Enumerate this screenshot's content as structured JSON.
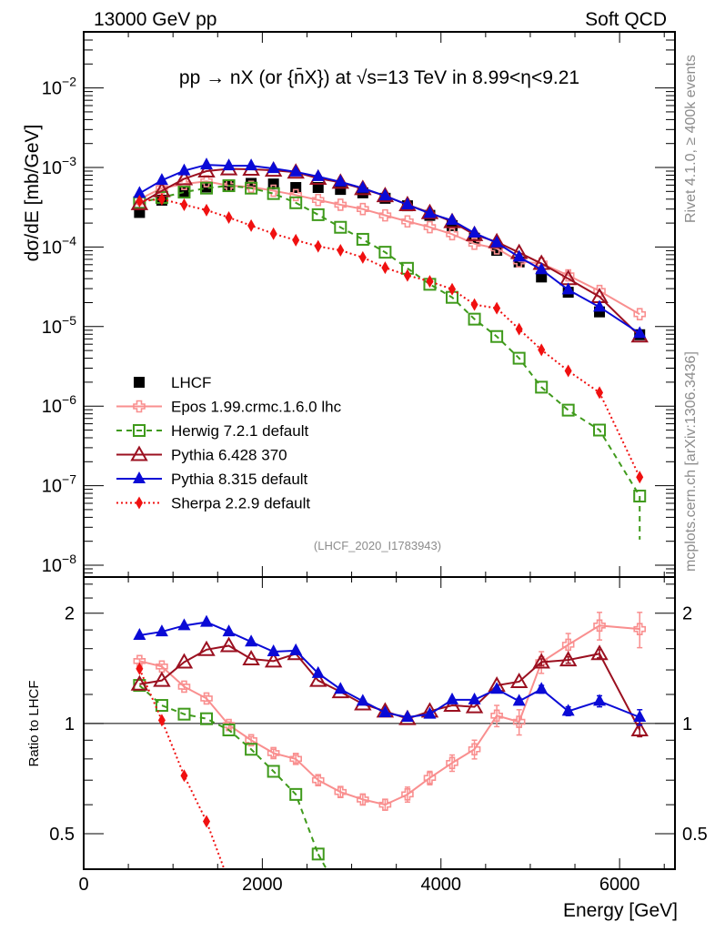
{
  "header": {
    "left": "13000 GeV pp",
    "right": "Soft QCD",
    "plot_title": "pp →  nX (or {n̄X}) at √s=13 TeV in 8.99<η<9.21",
    "side_top": "Rivet 4.1.0, ≥ 400k events",
    "side_bottom": "mcplots.cern.ch [arXiv:1306.3436]",
    "analysis_id": "(LHCF_2020_I1783943)"
  },
  "chart_data": [
    {
      "type": "line",
      "panel": "main",
      "title": "pp → nX (or n̄X) at √s=13 TeV in 8.99<η<9.21",
      "xlabel": "",
      "ylabel": "dσ/dE [mb/GeV]",
      "yscale": "log",
      "xlim": [
        0,
        6620
      ],
      "ylim": [
        7.1e-09,
        0.0507
      ],
      "y_ticks": [
        {
          "v": 1e-08,
          "label": "10",
          "exp": "−8"
        },
        {
          "v": 1e-07,
          "label": "10",
          "exp": "−7"
        },
        {
          "v": 1e-06,
          "label": "10",
          "exp": "−6"
        },
        {
          "v": 1e-05,
          "label": "10",
          "exp": "−5"
        },
        {
          "v": 0.0001,
          "label": "10",
          "exp": "−4"
        },
        {
          "v": 0.001,
          "label": "10",
          "exp": "−3"
        },
        {
          "v": 0.01,
          "label": "10",
          "exp": "−2"
        }
      ],
      "legend_position": "lower-left",
      "x": [
        625,
        875,
        1125,
        1375,
        1625,
        1875,
        2125,
        2375,
        2625,
        2875,
        3125,
        3375,
        3625,
        3875,
        4125,
        4375,
        4625,
        4875,
        5125,
        5425,
        5775,
        6225
      ],
      "series": [
        {
          "name": "LHCF",
          "color": "#000000",
          "marker": "square-filled",
          "line": "none",
          "values": [
            0.000272,
            0.000388,
            0.000492,
            0.000569,
            0.000592,
            0.000631,
            0.00062,
            0.00056,
            0.00056,
            0.00053,
            0.00048,
            0.00041,
            0.00033,
            0.00025,
            0.000186,
            0.000129,
            9.1e-05,
            6.5e-05,
            4.2e-05,
            2.7e-05,
            1.53e-05,
            7.9e-06
          ]
        },
        {
          "name": "Epos 1.99.crmc.1.6.0 lhc",
          "color": "#f98f8f",
          "marker": "cross-open",
          "line": "solid",
          "values": [
            0.0004,
            0.00055,
            0.00062,
            0.00067,
            0.00059,
            0.00057,
            0.00051,
            0.00045,
            0.00039,
            0.00034,
            0.0003,
            0.00025,
            0.00021,
            0.000178,
            0.000145,
            0.00011,
            9.6e-05,
            6.6e-05,
            6.2e-05,
            4.4e-05,
            2.8e-05,
            1.43e-05
          ]
        },
        {
          "name": "Herwig 7.2.1 default",
          "color": "#3f9a1b",
          "marker": "square-open",
          "line": "dashed",
          "values": [
            0.00036,
            0.00042,
            0.00049,
            0.00055,
            0.00059,
            0.00055,
            0.00047,
            0.00036,
            0.000255,
            0.000177,
            0.000125,
            8.6e-05,
            5.4e-05,
            3.4e-05,
            2.33e-05,
            1.24e-05,
            7.5e-06,
            4e-06,
            1.73e-06,
            8.9e-07,
            5e-07,
            7.4e-08
          ],
          "err_low_last": 2.1e-08
        },
        {
          "name": "Pythia 6.428 370",
          "color": "#9b1020",
          "marker": "triangle-open",
          "line": "solid",
          "values": [
            0.00035,
            0.00051,
            0.00072,
            0.0009,
            0.00096,
            0.00095,
            0.00092,
            0.00087,
            0.00073,
            0.00065,
            0.00054,
            0.00044,
            0.00034,
            0.00027,
            0.000208,
            0.000143,
            0.000116,
            8.5e-05,
            6.2e-05,
            4e-05,
            2.37e-05,
            7.6e-06
          ]
        },
        {
          "name": "Pythia 8.315 default",
          "color": "#0a0ad6",
          "marker": "triangle-filled",
          "line": "solid",
          "values": [
            0.000473,
            0.00069,
            0.00091,
            0.00108,
            0.00105,
            0.00105,
            0.00097,
            0.00088,
            0.00077,
            0.00066,
            0.00055,
            0.00044,
            0.00034,
            0.000265,
            0.000216,
            0.00015,
            0.000113,
            7.5e-05,
            5.2e-05,
            2.9e-05,
            1.76e-05,
            8.2e-06
          ]
        },
        {
          "name": "Sherpa 2.2.9 default",
          "color": "#f01010",
          "marker": "diamond-filled",
          "line": "dotted",
          "values": [
            0.000378,
            0.000399,
            0.00034,
            0.000291,
            0.000235,
            0.000186,
            0.000147,
            0.000122,
            0.000102,
            9.1e-05,
            7.4e-05,
            5.5e-05,
            4.4e-05,
            3.7e-05,
            2.95e-05,
            1.89e-05,
            1.7e-05,
            9.3e-06,
            5.1e-06,
            2.77e-06,
            1.48e-06,
            1.28e-07
          ]
        }
      ]
    },
    {
      "type": "line",
      "panel": "ratio",
      "xlabel": "Energy [GeV]",
      "ylabel": "Ratio to LHCF",
      "yscale": "log",
      "xlim": [
        0,
        6620
      ],
      "ylim": [
        0.4,
        2.51
      ],
      "x_ticks": [
        0,
        2000,
        4000,
        6000
      ],
      "y_ticks": [
        0.5,
        1,
        2
      ],
      "reference_line": 1,
      "x": [
        625,
        875,
        1125,
        1375,
        1625,
        1875,
        2125,
        2375,
        2625,
        2875,
        3125,
        3375,
        3625,
        3875,
        4125,
        4375,
        4625,
        4875,
        5125,
        5425,
        5775,
        6225
      ],
      "series": [
        {
          "name": "Epos 1.99.crmc.1.6.0 lhc",
          "values": [
            1.48,
            1.43,
            1.26,
            1.17,
            0.99,
            0.9,
            0.83,
            0.8,
            0.7,
            0.65,
            0.62,
            0.6,
            0.64,
            0.71,
            0.78,
            0.85,
            1.05,
            1.01,
            1.47,
            1.64,
            1.85,
            1.81
          ],
          "errors": [
            0.02,
            0.02,
            0.02,
            0.02,
            0.02,
            0.02,
            0.02,
            0.02,
            0.02,
            0.02,
            0.02,
            0.02,
            0.03,
            0.03,
            0.04,
            0.05,
            0.07,
            0.08,
            0.1,
            0.12,
            0.16,
            0.2
          ]
        },
        {
          "name": "Herwig 7.2.1 default",
          "values": [
            1.27,
            1.12,
            1.06,
            1.03,
            0.96,
            0.85,
            0.74,
            0.64,
            0.44,
            null,
            null,
            null,
            null,
            null,
            null,
            null,
            null,
            null,
            null,
            null,
            null,
            null
          ]
        },
        {
          "name": "Pythia 6.428 370",
          "values": [
            1.28,
            1.31,
            1.47,
            1.59,
            1.63,
            1.5,
            1.48,
            1.55,
            1.31,
            1.22,
            1.13,
            1.08,
            1.03,
            1.08,
            1.12,
            1.11,
            1.27,
            1.3,
            1.47,
            1.49,
            1.55,
            0.96
          ],
          "errors": [
            0,
            0,
            0,
            0,
            0,
            0,
            0,
            0,
            0,
            0,
            0,
            0,
            0,
            0,
            0,
            0,
            0,
            0,
            0.03,
            0.03,
            0.04,
            0.04
          ]
        },
        {
          "name": "Pythia 8.315 default",
          "values": [
            1.74,
            1.78,
            1.85,
            1.89,
            1.78,
            1.67,
            1.57,
            1.58,
            1.37,
            1.24,
            1.15,
            1.07,
            1.04,
            1.06,
            1.16,
            1.16,
            1.24,
            1.15,
            1.24,
            1.08,
            1.15,
            1.04
          ],
          "errors": [
            0,
            0,
            0,
            0,
            0,
            0,
            0,
            0,
            0,
            0,
            0,
            0,
            0,
            0,
            0,
            0,
            0,
            0.02,
            0.03,
            0.03,
            0.04,
            0.05
          ]
        },
        {
          "name": "Sherpa 2.2.9 default",
          "values": [
            1.41,
            1.02,
            0.72,
            0.54,
            0.37,
            null,
            null,
            null,
            null,
            null,
            null,
            null,
            null,
            null,
            null,
            null,
            null,
            null,
            null,
            null,
            null,
            null
          ]
        }
      ]
    }
  ]
}
